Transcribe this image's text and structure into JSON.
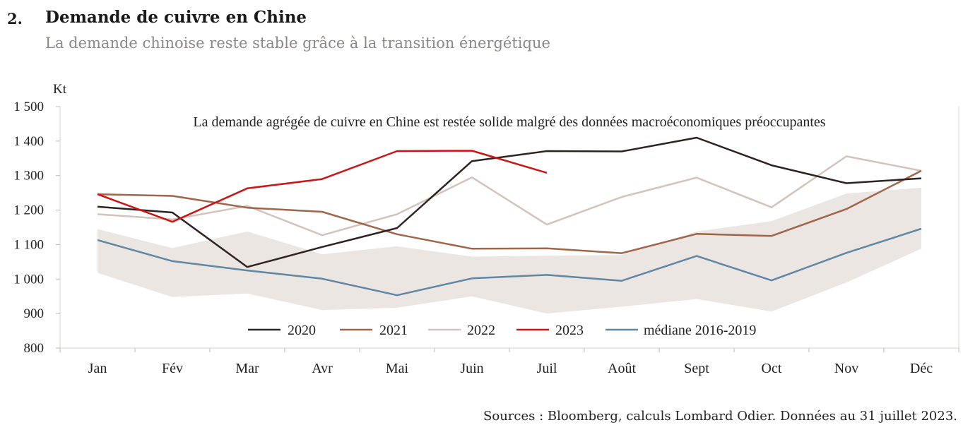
{
  "header": {
    "number": "2.",
    "title": "Demande de cuivre en Chine",
    "subtitle": "La demande chinoise reste stable grâce à la transition énergétique"
  },
  "source": "Sources : Bloomberg, calculs Lombard Odier. Données au 31 juillet 2023.",
  "chart_data": {
    "type": "line",
    "title": "La demande agrégée de cuivre en Chine est restée solide malgré des données macroéconomiques préoccupantes",
    "ylabel": "Kt",
    "xlabel": "",
    "ylim": [
      800,
      1500
    ],
    "yticks": [
      800,
      900,
      1000,
      1100,
      1200,
      1300,
      1400,
      1500
    ],
    "ytick_labels": [
      "800",
      "900",
      "1 000",
      "1 100",
      "1 200",
      "1 300",
      "1 400",
      "1 500"
    ],
    "categories": [
      "Jan",
      "Fév",
      "Mar",
      "Avr",
      "Mai",
      "Juin",
      "Juil",
      "Août",
      "Sept",
      "Oct",
      "Nov",
      "Déc"
    ],
    "grid": false,
    "legend_position": "bottom-center",
    "range_band": {
      "color": "#ece6e3",
      "upper": [
        1145,
        1090,
        1138,
        1072,
        1095,
        1065,
        1068,
        1070,
        1138,
        1168,
        1248,
        1265
      ],
      "lower": [
        1018,
        948,
        958,
        910,
        917,
        950,
        900,
        920,
        942,
        906,
        990,
        1088
      ]
    },
    "series": [
      {
        "name": "2020",
        "color": "#2f2321",
        "values": [
          1210,
          1193,
          1035,
          1093,
          1148,
          1342,
          1371,
          1370,
          1410,
          1330,
          1278,
          1292
        ]
      },
      {
        "name": "2021",
        "color": "#a1654a",
        "values": [
          1246,
          1241,
          1207,
          1195,
          1130,
          1088,
          1089,
          1075,
          1131,
          1125,
          1203,
          1314
        ]
      },
      {
        "name": "2022",
        "color": "#d3c3bc",
        "values": [
          1188,
          1173,
          1212,
          1127,
          1188,
          1295,
          1158,
          1238,
          1294,
          1208,
          1356,
          1314
        ]
      },
      {
        "name": "2023",
        "color": "#cc1616",
        "values": [
          1246,
          1166,
          1263,
          1290,
          1371,
          1372,
          1308,
          null,
          null,
          null,
          null,
          null
        ]
      },
      {
        "name": "médiane 2016-2019",
        "color": "#5f86a2",
        "values": [
          1113,
          1052,
          1025,
          1001,
          953,
          1002,
          1012,
          995,
          1067,
          996,
          1076,
          1146
        ]
      }
    ]
  }
}
